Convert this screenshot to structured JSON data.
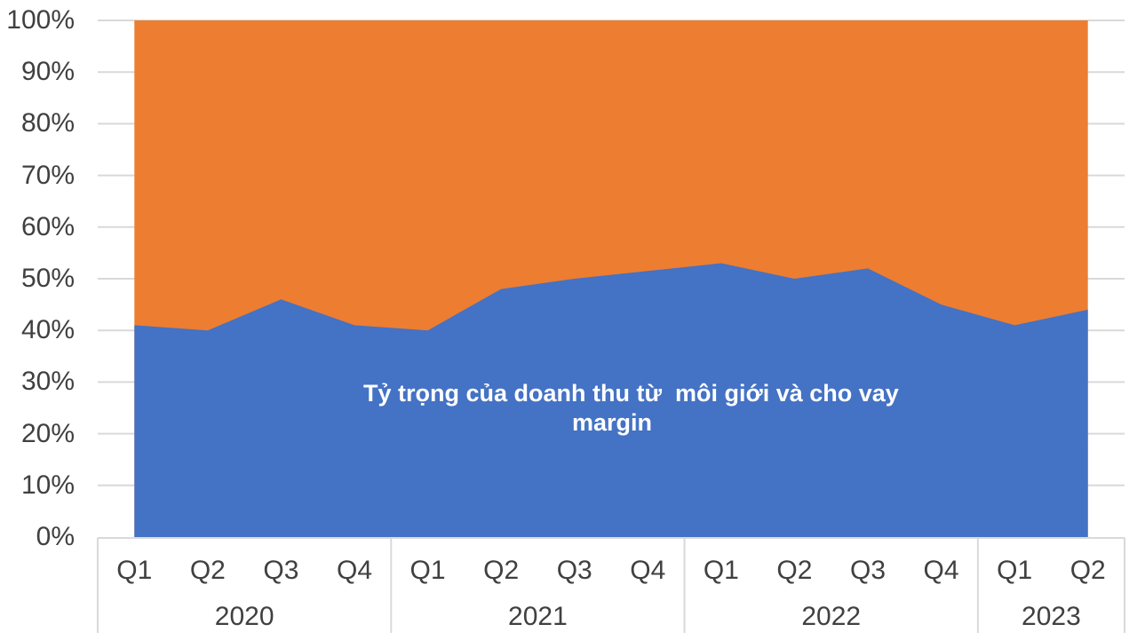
{
  "chart_data": {
    "type": "area",
    "variant": "100-percent-stacked-area",
    "legend": "none",
    "categories": [
      {
        "year": "2020",
        "quarters": [
          "Q1",
          "Q2",
          "Q3",
          "Q4"
        ]
      },
      {
        "year": "2021",
        "quarters": [
          "Q1",
          "Q2",
          "Q3",
          "Q4"
        ]
      },
      {
        "year": "2022",
        "quarters": [
          "Q1",
          "Q2",
          "Q3",
          "Q4"
        ]
      },
      {
        "year": "2023",
        "quarters": [
          "Q1",
          "Q2"
        ]
      }
    ],
    "series": [
      {
        "name": "Tỷ trọng của doanh thu từ môi giới và cho vay margin",
        "color": "#4472C4",
        "values": [
          41,
          40,
          46,
          41,
          40,
          48,
          50,
          51.5,
          53,
          50,
          52,
          45,
          41,
          44
        ]
      },
      {
        "name": "",
        "color": "#ED7D31",
        "values": [
          59,
          60,
          54,
          59,
          60,
          52,
          50,
          48.5,
          47,
          50,
          48,
          55,
          59,
          56
        ]
      }
    ],
    "series_label_lines": [
      "Tỷ trọng của doanh thu từ  môi giới và cho vay",
      "margin"
    ],
    "y_axis": {
      "min": 0,
      "max": 100,
      "tick_step": 10,
      "ticks": [
        "0%",
        "10%",
        "20%",
        "30%",
        "40%",
        "50%",
        "60%",
        "70%",
        "80%",
        "90%",
        "100%"
      ],
      "grid": true
    }
  },
  "colors": {
    "blue_area": "#4472C4",
    "orange_area": "#ED7D31",
    "axis_text": "#404040",
    "gridline": "#D9D9D9"
  }
}
